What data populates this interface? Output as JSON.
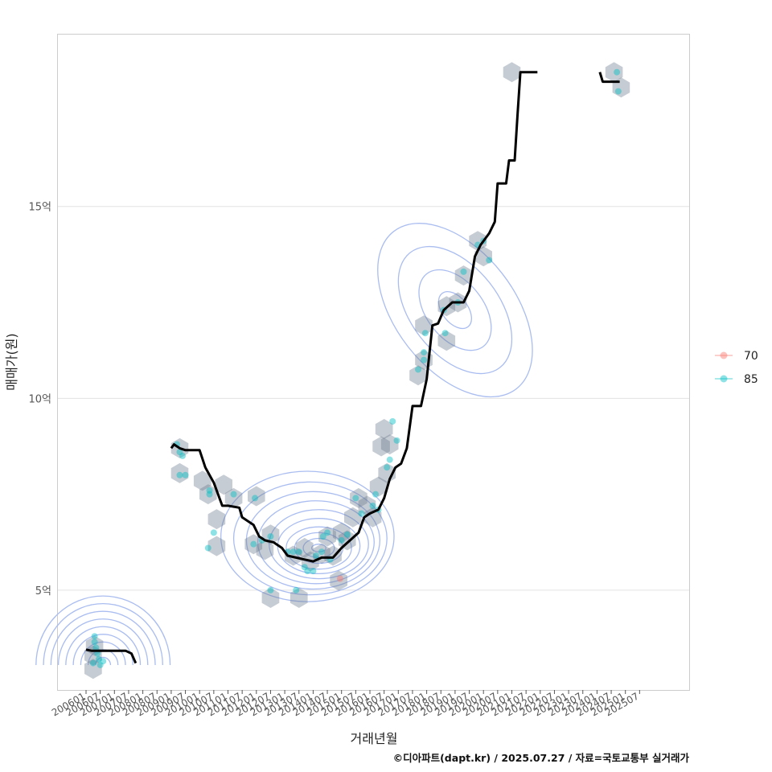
{
  "chart_data": {
    "type": "line",
    "xlabel": "거래년월",
    "ylabel": "매매가(원)",
    "caption": "©디아파트(dapt.kr) / 2025.07.27 / 자료=국토교통부 실거래가",
    "x_ticks": [
      "200601",
      "200607",
      "200701",
      "200707",
      "200801",
      "200807",
      "200901",
      "200907",
      "201001",
      "201007",
      "201101",
      "201107",
      "201201",
      "201207",
      "201301",
      "201307",
      "201401",
      "201407",
      "201501",
      "201507",
      "201601",
      "201607",
      "201701",
      "201707",
      "201801",
      "201807",
      "201901",
      "201907",
      "202001",
      "202007",
      "202101",
      "202107",
      "202201",
      "202207",
      "202301",
      "202307",
      "202401",
      "202407",
      "202501",
      "202507"
    ],
    "y_ticks": [
      {
        "value": 5,
        "label": "5억"
      },
      {
        "value": 10,
        "label": "10억"
      },
      {
        "value": 15,
        "label": "15억"
      }
    ],
    "x_range": [
      2006.0,
      2026.0
    ],
    "y_range": [
      2.4,
      19.5
    ],
    "legend": {
      "title": "",
      "position": "right",
      "entries": [
        {
          "name": "70",
          "color": "#F8766D"
        },
        {
          "name": "85",
          "color": "#00BFC4"
        }
      ]
    },
    "trend_line": {
      "color": "#000000",
      "segments": [
        [
          [
            2006.0,
            3.45
          ],
          [
            2006.2,
            3.42
          ],
          [
            2006.6,
            3.42
          ],
          [
            2007.0,
            3.42
          ],
          [
            2007.4,
            3.42
          ],
          [
            2007.6,
            3.35
          ],
          [
            2007.75,
            3.1
          ]
        ],
        [
          [
            2009.0,
            8.7
          ],
          [
            2009.1,
            8.8
          ],
          [
            2009.3,
            8.7
          ],
          [
            2009.5,
            8.65
          ],
          [
            2010.0,
            8.65
          ],
          [
            2010.2,
            8.2
          ],
          [
            2010.5,
            7.8
          ],
          [
            2010.7,
            7.4
          ],
          [
            2010.8,
            7.2
          ],
          [
            2011.0,
            7.2
          ],
          [
            2011.4,
            7.15
          ],
          [
            2011.5,
            6.9
          ],
          [
            2011.7,
            6.8
          ],
          [
            2011.9,
            6.7
          ],
          [
            2012.1,
            6.4
          ],
          [
            2012.3,
            6.3
          ],
          [
            2012.6,
            6.25
          ],
          [
            2012.9,
            6.1
          ],
          [
            2013.1,
            5.9
          ],
          [
            2013.4,
            5.85
          ],
          [
            2013.7,
            5.8
          ],
          [
            2014.0,
            5.75
          ],
          [
            2014.3,
            5.85
          ],
          [
            2014.7,
            5.85
          ],
          [
            2015.0,
            6.1
          ],
          [
            2015.3,
            6.3
          ],
          [
            2015.6,
            6.5
          ],
          [
            2015.8,
            6.9
          ],
          [
            2016.0,
            7.0
          ],
          [
            2016.3,
            7.1
          ],
          [
            2016.5,
            7.4
          ],
          [
            2016.7,
            7.9
          ],
          [
            2016.9,
            8.2
          ],
          [
            2017.1,
            8.3
          ],
          [
            2017.3,
            8.7
          ],
          [
            2017.5,
            9.8
          ],
          [
            2017.8,
            9.8
          ],
          [
            2018.0,
            10.5
          ],
          [
            2018.2,
            11.9
          ],
          [
            2018.4,
            11.95
          ],
          [
            2018.6,
            12.3
          ],
          [
            2018.9,
            12.5
          ],
          [
            2019.3,
            12.5
          ],
          [
            2019.5,
            12.8
          ],
          [
            2019.7,
            13.7
          ],
          [
            2019.9,
            14.0
          ],
          [
            2020.2,
            14.3
          ],
          [
            2020.4,
            14.6
          ],
          [
            2020.5,
            15.6
          ],
          [
            2020.8,
            15.6
          ],
          [
            2020.9,
            16.2
          ],
          [
            2021.1,
            16.2
          ],
          [
            2021.2,
            17.4
          ],
          [
            2021.3,
            18.5
          ],
          [
            2021.9,
            18.5
          ]
        ],
        [
          [
            2024.1,
            18.5
          ],
          [
            2024.2,
            18.25
          ],
          [
            2024.8,
            18.25
          ]
        ]
      ]
    },
    "hexbins": [
      [
        2006.3,
        3.55
      ],
      [
        2006.25,
        3.3
      ],
      [
        2006.25,
        2.95
      ],
      [
        2009.3,
        8.7
      ],
      [
        2009.3,
        8.05
      ],
      [
        2010.1,
        7.85
      ],
      [
        2010.3,
        7.5
      ],
      [
        2010.6,
        6.85
      ],
      [
        2010.85,
        7.75
      ],
      [
        2010.6,
        6.15
      ],
      [
        2011.2,
        7.4
      ],
      [
        2012.0,
        7.45
      ],
      [
        2011.9,
        6.2
      ],
      [
        2012.5,
        6.45
      ],
      [
        2012.3,
        6.05
      ],
      [
        2012.5,
        4.8
      ],
      [
        2013.5,
        4.8
      ],
      [
        2013.3,
        5.9
      ],
      [
        2013.7,
        6.1
      ],
      [
        2013.9,
        5.75
      ],
      [
        2014.3,
        5.95
      ],
      [
        2014.5,
        6.4
      ],
      [
        2014.7,
        5.9
      ],
      [
        2015.0,
        6.5
      ],
      [
        2015.2,
        6.3
      ],
      [
        2015.4,
        6.9
      ],
      [
        2015.6,
        7.4
      ],
      [
        2015.9,
        7.2
      ],
      [
        2016.1,
        6.9
      ],
      [
        2014.9,
        5.25
      ],
      [
        2016.3,
        7.7
      ],
      [
        2016.6,
        8.05
      ],
      [
        2016.4,
        8.75
      ],
      [
        2016.7,
        8.8
      ],
      [
        2016.5,
        9.2
      ],
      [
        2017.7,
        10.6
      ],
      [
        2017.9,
        11.0
      ],
      [
        2017.9,
        11.9
      ],
      [
        2018.7,
        12.4
      ],
      [
        2019.1,
        12.5
      ],
      [
        2018.7,
        11.5
      ],
      [
        2019.3,
        13.2
      ],
      [
        2019.8,
        14.1
      ],
      [
        2020.0,
        13.7
      ],
      [
        2021.0,
        18.5
      ],
      [
        2024.6,
        18.5
      ],
      [
        2024.85,
        18.1
      ]
    ],
    "points": [
      {
        "x": 2006.3,
        "y": 3.65,
        "g": "85"
      },
      {
        "x": 2006.35,
        "y": 3.5,
        "g": "85"
      },
      {
        "x": 2006.4,
        "y": 3.35,
        "g": "85"
      },
      {
        "x": 2006.45,
        "y": 3.2,
        "g": "85"
      },
      {
        "x": 2006.25,
        "y": 3.1,
        "g": "85"
      },
      {
        "x": 2006.6,
        "y": 3.15,
        "g": "85"
      },
      {
        "x": 2006.3,
        "y": 3.8,
        "g": "85"
      },
      {
        "x": 2006.5,
        "y": 3.05,
        "g": "85"
      },
      {
        "x": 2009.2,
        "y": 8.8,
        "g": "85"
      },
      {
        "x": 2009.3,
        "y": 8.6,
        "g": "85"
      },
      {
        "x": 2009.4,
        "y": 8.5,
        "g": "85"
      },
      {
        "x": 2009.3,
        "y": 8.0,
        "g": "85"
      },
      {
        "x": 2009.5,
        "y": 8.0,
        "g": "85"
      },
      {
        "x": 2010.35,
        "y": 7.6,
        "g": "85"
      },
      {
        "x": 2010.35,
        "y": 7.5,
        "g": "85"
      },
      {
        "x": 2010.5,
        "y": 6.5,
        "g": "85"
      },
      {
        "x": 2010.3,
        "y": 6.1,
        "g": "85"
      },
      {
        "x": 2011.2,
        "y": 7.5,
        "g": "85"
      },
      {
        "x": 2011.95,
        "y": 7.4,
        "g": "85"
      },
      {
        "x": 2011.9,
        "y": 6.2,
        "g": "85"
      },
      {
        "x": 2012.2,
        "y": 6.3,
        "g": "85"
      },
      {
        "x": 2012.5,
        "y": 5.0,
        "g": "85"
      },
      {
        "x": 2013.4,
        "y": 5.0,
        "g": "85"
      },
      {
        "x": 2012.5,
        "y": 6.4,
        "g": "85"
      },
      {
        "x": 2013.1,
        "y": 6.0,
        "g": "85"
      },
      {
        "x": 2013.3,
        "y": 6.0,
        "g": "85"
      },
      {
        "x": 2013.5,
        "y": 6.0,
        "g": "85"
      },
      {
        "x": 2013.7,
        "y": 5.6,
        "g": "85"
      },
      {
        "x": 2013.8,
        "y": 5.5,
        "g": "85"
      },
      {
        "x": 2014.0,
        "y": 5.5,
        "g": "85"
      },
      {
        "x": 2014.1,
        "y": 5.9,
        "g": "85"
      },
      {
        "x": 2014.3,
        "y": 6.0,
        "g": "85"
      },
      {
        "x": 2014.35,
        "y": 6.4,
        "g": "85"
      },
      {
        "x": 2014.5,
        "y": 6.5,
        "g": "85"
      },
      {
        "x": 2014.6,
        "y": 5.8,
        "g": "85"
      },
      {
        "x": 2015.0,
        "y": 6.3,
        "g": "85"
      },
      {
        "x": 2015.2,
        "y": 6.45,
        "g": "85"
      },
      {
        "x": 2015.5,
        "y": 7.4,
        "g": "85"
      },
      {
        "x": 2015.7,
        "y": 7.0,
        "g": "85"
      },
      {
        "x": 2016.1,
        "y": 7.2,
        "g": "85"
      },
      {
        "x": 2016.2,
        "y": 7.5,
        "g": "85"
      },
      {
        "x": 2016.3,
        "y": 7.1,
        "g": "85"
      },
      {
        "x": 2016.6,
        "y": 8.2,
        "g": "85"
      },
      {
        "x": 2016.7,
        "y": 8.4,
        "g": "85"
      },
      {
        "x": 2016.8,
        "y": 9.4,
        "g": "85"
      },
      {
        "x": 2016.95,
        "y": 8.9,
        "g": "85"
      },
      {
        "x": 2017.7,
        "y": 10.75,
        "g": "85"
      },
      {
        "x": 2017.9,
        "y": 11.0,
        "g": "85"
      },
      {
        "x": 2017.9,
        "y": 11.2,
        "g": "85"
      },
      {
        "x": 2017.95,
        "y": 11.7,
        "g": "85"
      },
      {
        "x": 2018.6,
        "y": 12.3,
        "g": "85"
      },
      {
        "x": 2018.65,
        "y": 11.7,
        "g": "85"
      },
      {
        "x": 2019.1,
        "y": 12.5,
        "g": "85"
      },
      {
        "x": 2019.3,
        "y": 13.3,
        "g": "85"
      },
      {
        "x": 2019.8,
        "y": 14.0,
        "g": "85"
      },
      {
        "x": 2020.0,
        "y": 14.1,
        "g": "85"
      },
      {
        "x": 2020.2,
        "y": 13.6,
        "g": "85"
      },
      {
        "x": 2024.7,
        "y": 18.5,
        "g": "85"
      },
      {
        "x": 2024.75,
        "y": 18.0,
        "g": "85"
      },
      {
        "x": 2014.95,
        "y": 5.3,
        "g": "70"
      }
    ],
    "density_levels": [
      {
        "cx": 2014.2,
        "cy": 6.1,
        "rx": 0.25,
        "ry": 0.1
      },
      {
        "cx": 2014.2,
        "cy": 6.1,
        "rx": 0.55,
        "ry": 0.25
      },
      {
        "cx": 2014.2,
        "cy": 6.1,
        "rx": 0.85,
        "ry": 0.4
      },
      {
        "cx": 2014.2,
        "cy": 6.1,
        "rx": 1.15,
        "ry": 0.55
      },
      {
        "cx": 2014.2,
        "cy": 6.15,
        "rx": 1.45,
        "ry": 0.72
      },
      {
        "cx": 2014.2,
        "cy": 6.2,
        "rx": 1.75,
        "ry": 0.9
      },
      {
        "cx": 2014.1,
        "cy": 6.25,
        "rx": 2.05,
        "ry": 1.08
      },
      {
        "cx": 2014.0,
        "cy": 6.3,
        "rx": 2.35,
        "ry": 1.27
      },
      {
        "cx": 2013.9,
        "cy": 6.35,
        "rx": 2.7,
        "ry": 1.47
      },
      {
        "cx": 2013.8,
        "cy": 6.4,
        "rx": 3.05,
        "ry": 1.7
      }
    ]
  }
}
